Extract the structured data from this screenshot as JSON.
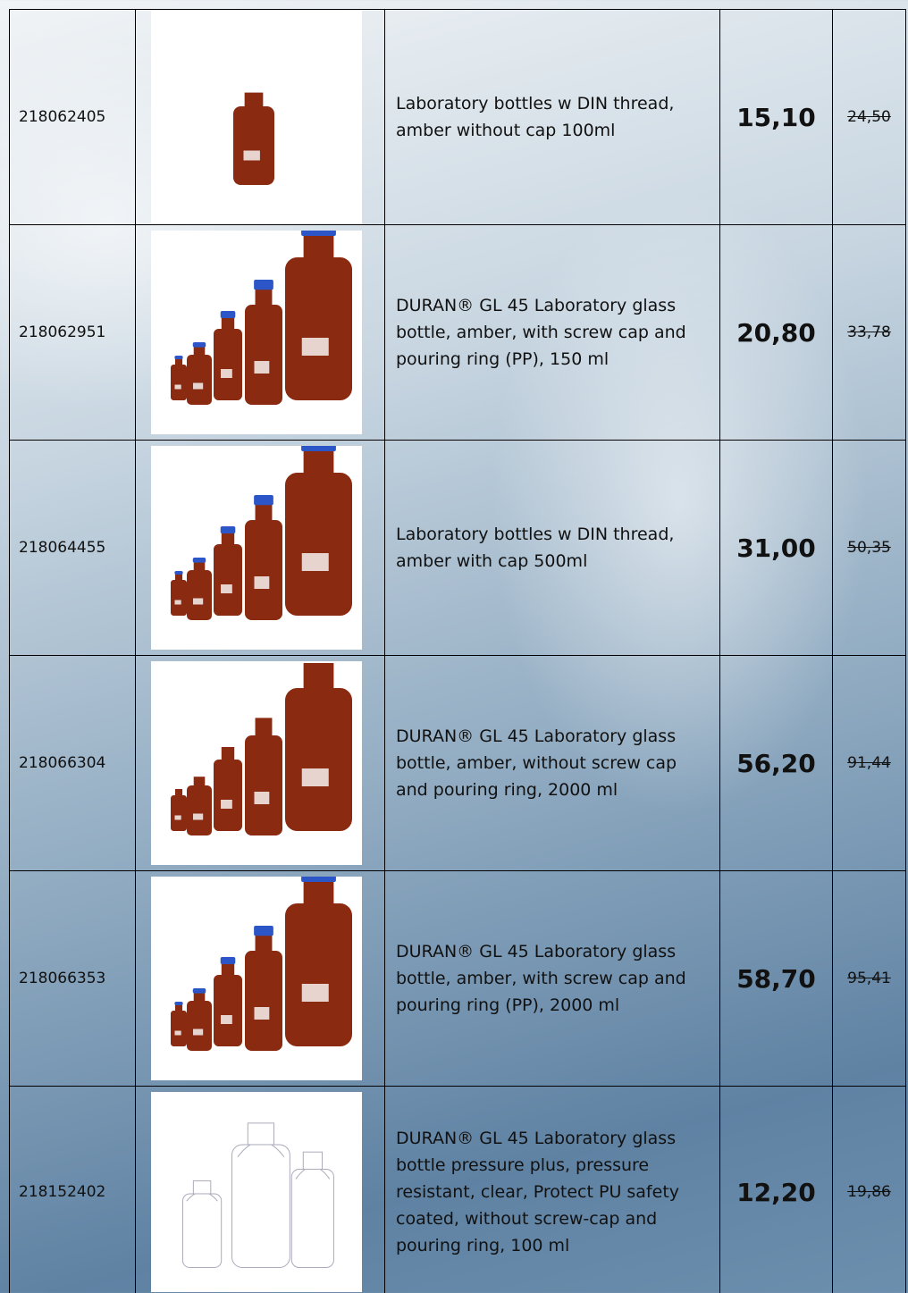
{
  "table": {
    "rows": [
      {
        "code": "218062405",
        "description": "Laboratory bottles w DIN thread, amber without cap 100ml",
        "price": "15,10",
        "old_price": "24,50"
      },
      {
        "code": "218062951",
        "description": "DURAN® GL 45 Laboratory glass bottle, amber, with screw cap and pouring ring (PP), 150 ml",
        "price": "20,80",
        "old_price": "33,78"
      },
      {
        "code": "218064455",
        "description": "Laboratory bottles w DIN thread, amber with cap 500ml",
        "price": "31,00",
        "old_price": "50,35"
      },
      {
        "code": "218066304",
        "description": "DURAN® GL 45 Laboratory glass bottle, amber, without screw cap and pouring ring, 2000 ml",
        "price": "56,20",
        "old_price": "91,44"
      },
      {
        "code": "218066353",
        "description": "DURAN® GL 45 Laboratory glass bottle, amber, with screw cap and pouring ring (PP), 2000 ml",
        "price": "58,70",
        "old_price": "95,41"
      },
      {
        "code": "218152402",
        "description": "DURAN® GL 45 Laboratory glass bottle pressure plus, pressure resistant, clear, Protect PU safety coated, without screw-cap and pouring ring, 100 ml",
        "price": "12,20",
        "old_price": "19,86"
      }
    ]
  }
}
